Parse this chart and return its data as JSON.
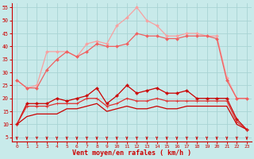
{
  "x": [
    0,
    1,
    2,
    3,
    4,
    5,
    6,
    7,
    8,
    9,
    10,
    11,
    12,
    13,
    14,
    15,
    16,
    17,
    18,
    19,
    20,
    21,
    22,
    23
  ],
  "line_rafales_max": [
    27,
    24,
    25,
    38,
    38,
    38,
    36,
    41,
    42,
    41,
    48,
    51,
    55,
    50,
    48,
    44,
    44,
    45,
    45,
    44,
    44,
    28,
    20,
    20
  ],
  "line_rafales_med": [
    27,
    24,
    24,
    31,
    35,
    38,
    36,
    38,
    41,
    40,
    40,
    41,
    45,
    44,
    44,
    43,
    43,
    44,
    44,
    44,
    43,
    27,
    20,
    20
  ],
  "line_moy_upper": [
    10,
    18,
    18,
    18,
    20,
    19,
    20,
    21,
    24,
    18,
    21,
    25,
    22,
    23,
    24,
    22,
    22,
    23,
    20,
    20,
    20,
    20,
    12,
    8
  ],
  "line_moy_mid": [
    10,
    17,
    17,
    17,
    18,
    18,
    18,
    20,
    20,
    17,
    18,
    20,
    19,
    19,
    20,
    19,
    19,
    19,
    19,
    19,
    19,
    19,
    11,
    8
  ],
  "line_moy_lower": [
    10,
    13,
    14,
    14,
    14,
    16,
    16,
    17,
    18,
    15,
    16,
    17,
    16,
    16,
    17,
    16,
    16,
    17,
    17,
    17,
    17,
    17,
    10,
    8
  ],
  "color_light_pink": "#f8a0a0",
  "color_med_pink": "#f06060",
  "color_dark_red": "#cc0000",
  "color_mid_red": "#e03030",
  "bg_color": "#c8eaea",
  "grid_color": "#a8d4d4",
  "xlabel": "Vent moyen/en rafales ( km/h )",
  "yticks": [
    5,
    10,
    15,
    20,
    25,
    30,
    35,
    40,
    45,
    50,
    55
  ],
  "xticks": [
    0,
    1,
    2,
    3,
    4,
    5,
    6,
    7,
    8,
    9,
    10,
    11,
    12,
    13,
    14,
    15,
    16,
    17,
    18,
    19,
    20,
    21,
    22,
    23
  ]
}
